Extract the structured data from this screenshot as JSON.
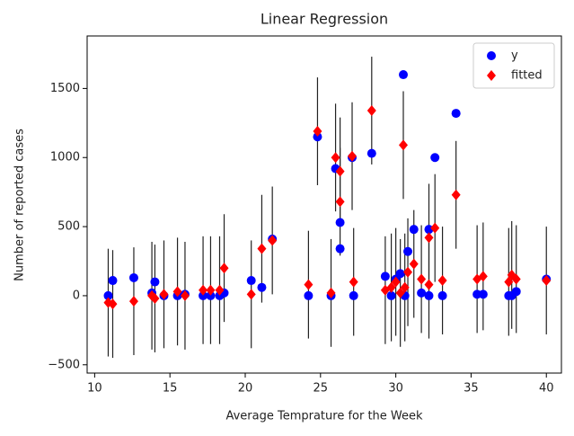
{
  "chart_data": {
    "type": "scatter",
    "title": "Linear Regression",
    "x_label": "Average Temprature for the Week",
    "y_label": "Number of reported cases",
    "x": [
      10.9,
      11.2,
      12.6,
      13.8,
      14.0,
      14.6,
      15.5,
      16.0,
      17.2,
      17.7,
      18.3,
      18.6,
      20.4,
      21.1,
      21.8,
      24.2,
      24.8,
      25.7,
      26.0,
      26.3,
      26.3,
      27.1,
      27.2,
      28.4,
      29.3,
      29.7,
      30.0,
      30.3,
      30.5,
      30.6,
      30.8,
      31.2,
      31.7,
      32.2,
      32.2,
      32.6,
      33.1,
      34.0,
      35.4,
      35.8,
      37.5,
      37.7,
      38.0,
      40.0
    ],
    "series": [
      {
        "name": "y",
        "color": "#0000ff",
        "marker": "circle",
        "values": [
          0,
          110,
          130,
          20,
          100,
          0,
          0,
          10,
          0,
          0,
          0,
          20,
          110,
          60,
          410,
          0,
          1150,
          0,
          920,
          530,
          340,
          1000,
          0,
          1030,
          140,
          0,
          120,
          160,
          1600,
          0,
          320,
          480,
          20,
          480,
          0,
          1000,
          0,
          1320,
          10,
          10,
          0,
          0,
          30,
          120
        ]
      },
      {
        "name": "fitted",
        "color": "#ff0000",
        "marker": "diamond",
        "error": 390,
        "values": [
          -50,
          -60,
          -40,
          0,
          -20,
          10,
          30,
          0,
          40,
          40,
          40,
          200,
          10,
          340,
          400,
          80,
          1190,
          20,
          1000,
          900,
          680,
          1010,
          100,
          1340,
          40,
          60,
          100,
          20,
          1090,
          60,
          170,
          230,
          120,
          420,
          80,
          490,
          110,
          730,
          120,
          140,
          100,
          150,
          120,
          110
        ]
      }
    ],
    "xlim": [
      9.5,
      41
    ],
    "ylim": [
      -560,
      1880
    ],
    "xticks": [
      10,
      15,
      20,
      25,
      30,
      35,
      40
    ],
    "yticks": [
      {
        "value": -500,
        "label": "−500"
      },
      0,
      500,
      1000,
      1500
    ],
    "legend": "upper right"
  }
}
